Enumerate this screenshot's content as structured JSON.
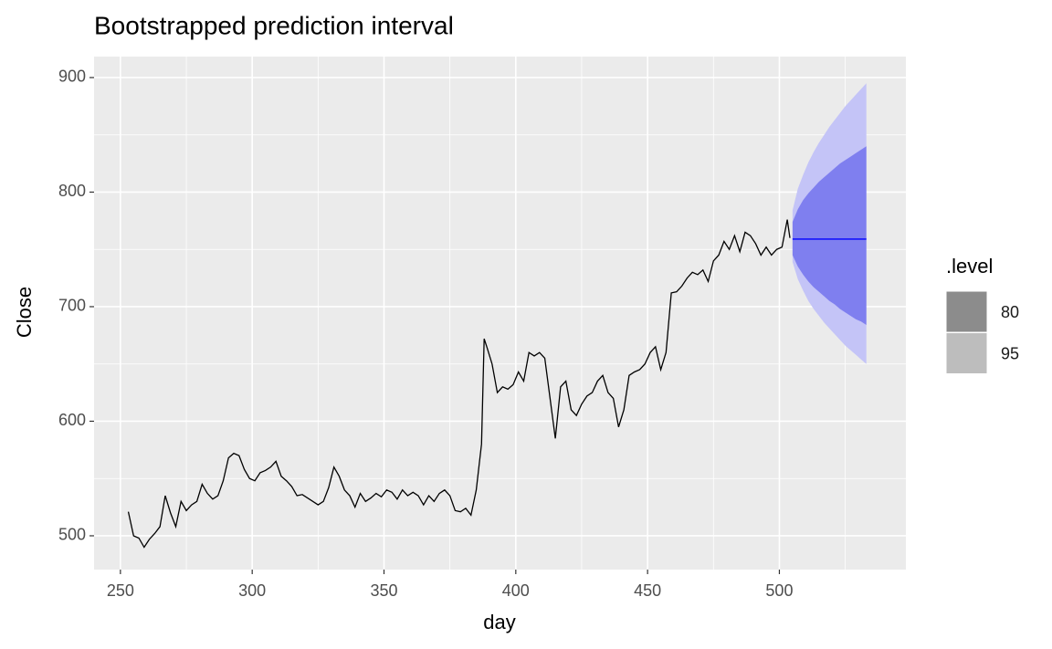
{
  "chart_data": {
    "type": "line",
    "title": "Bootstrapped prediction interval",
    "xlabel": "day",
    "ylabel": "Close",
    "xlim": [
      240,
      548
    ],
    "ylim": [
      470.5,
      918.3
    ],
    "xticks": [
      250,
      300,
      350,
      400,
      450,
      500
    ],
    "yticks": [
      500,
      600,
      700,
      800,
      900
    ],
    "xminor_ticks": [
      275,
      325,
      375,
      425,
      475,
      525
    ],
    "yminor_ticks": [
      550,
      650,
      750,
      850
    ],
    "grid": true,
    "history": {
      "color": "#000000",
      "x": [
        253,
        255,
        257,
        259,
        261,
        263,
        265,
        267,
        269,
        271,
        273,
        275,
        277,
        279,
        281,
        283,
        285,
        287,
        289,
        291,
        293,
        295,
        297,
        299,
        301,
        303,
        305,
        307,
        309,
        311,
        313,
        315,
        317,
        319,
        321,
        323,
        325,
        327,
        329,
        331,
        333,
        335,
        337,
        339,
        341,
        343,
        345,
        347,
        349,
        351,
        353,
        355,
        357,
        359,
        361,
        363,
        365,
        367,
        369,
        371,
        373,
        375,
        377,
        379,
        381,
        383,
        385,
        387,
        388,
        389,
        391,
        393,
        395,
        397,
        399,
        401,
        403,
        405,
        407,
        409,
        411,
        413,
        415,
        417,
        419,
        421,
        423,
        425,
        427,
        429,
        431,
        433,
        435,
        437,
        439,
        441,
        443,
        445,
        447,
        449,
        451,
        453,
        455,
        457,
        459,
        461,
        463,
        465,
        467,
        469,
        471,
        473,
        475,
        477,
        479,
        481,
        483,
        485,
        487,
        489,
        491,
        493,
        495,
        497,
        499,
        501,
        503,
        504
      ],
      "values": [
        521,
        500,
        498,
        490,
        497,
        502,
        508,
        535,
        520,
        508,
        530,
        522,
        527,
        530,
        545,
        537,
        532,
        535,
        548,
        568,
        572,
        570,
        558,
        550,
        548,
        555,
        557,
        560,
        565,
        552,
        548,
        543,
        535,
        536,
        533,
        530,
        527,
        530,
        542,
        560,
        552,
        540,
        535,
        525,
        537,
        530,
        533,
        537,
        534,
        540,
        538,
        532,
        540,
        535,
        538,
        535,
        527,
        535,
        530,
        537,
        540,
        535,
        522,
        521,
        524,
        518,
        540,
        580,
        672,
        665,
        650,
        625,
        630,
        628,
        632,
        643,
        635,
        660,
        657,
        660,
        655,
        620,
        585,
        630,
        635,
        610,
        605,
        615,
        622,
        625,
        635,
        640,
        625,
        620,
        595,
        610,
        640,
        643,
        645,
        650,
        660,
        665,
        645,
        660,
        712,
        713,
        718,
        725,
        730,
        728,
        732,
        722,
        740,
        745,
        757,
        750,
        762,
        748,
        765,
        762,
        755,
        745,
        752,
        745,
        750,
        752,
        776,
        760
      ]
    },
    "forecast": {
      "color": "#0000ff",
      "x": [
        505,
        507,
        509,
        511,
        513,
        515,
        517,
        519,
        521,
        523,
        525,
        527,
        529,
        531,
        533
      ],
      "values": [
        759,
        759,
        759,
        759,
        759,
        759,
        759,
        759,
        759,
        759,
        759,
        759,
        759,
        759,
        759
      ],
      "intervals": [
        {
          "name": "80",
          "color": "#7f7fef",
          "legend_color": "#8c8c8c",
          "lower": [
            745,
            735,
            728,
            722,
            717,
            713,
            709,
            705,
            702,
            698,
            695,
            692,
            689,
            687,
            684
          ],
          "upper": [
            774,
            785,
            793,
            799,
            804,
            809,
            813,
            817,
            821,
            825,
            828,
            831,
            834,
            837,
            840
          ]
        },
        {
          "name": "95",
          "color": "#c4c4f7",
          "legend_color": "#bdbdbd",
          "lower": [
            739,
            724,
            714,
            705,
            698,
            692,
            686,
            681,
            676,
            671,
            666,
            662,
            658,
            654,
            650
          ],
          "upper": [
            784,
            803,
            815,
            826,
            835,
            843,
            850,
            857,
            863,
            869,
            875,
            880,
            885,
            890,
            895
          ]
        }
      ]
    },
    "legend": {
      "title": ".level",
      "position": "right"
    }
  }
}
